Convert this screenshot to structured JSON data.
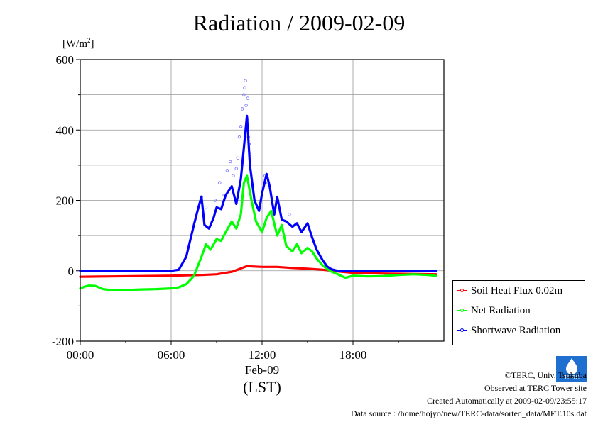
{
  "title": "Radiation / 2009-02-09",
  "unit_label": "[W/m",
  "unit_exp": "2",
  "unit_close": "]",
  "credits": {
    "line1": "©TERC, Univ. Tsukuba",
    "line2": "Observed at TERC Tower site",
    "line3": "Created Automatically at 2009-02-09/23:55:17",
    "line4": "Data source : /home/hojyo/new/TERC-data/sorted_data/MET.10s.dat"
  },
  "logo_text": "TERC",
  "chart_data": {
    "type": "line",
    "title": "Radiation / 2009-02-09",
    "ylabel": "[W/m2]",
    "xlabel": "(LST)",
    "x_date_label": "Feb-09",
    "ylim": [
      -200,
      600
    ],
    "xlim": [
      0,
      24
    ],
    "y_ticks": [
      -200,
      0,
      200,
      400,
      600
    ],
    "x_ticks": [
      {
        "hour": 0,
        "label": "00:00"
      },
      {
        "hour": 6,
        "label": "06:00"
      },
      {
        "hour": 12,
        "label": "12:00"
      },
      {
        "hour": 18,
        "label": "18:00"
      }
    ],
    "grid": true,
    "legend_position": "right",
    "series": [
      {
        "name": "Soil Heat Flux 0.02m",
        "color": "#ff0000",
        "x": [
          0,
          2,
          4,
          6,
          7,
          8,
          9,
          10,
          10.5,
          11,
          11.5,
          12,
          13,
          14,
          15,
          16,
          17,
          18,
          20,
          22,
          23.5
        ],
        "y": [
          -17,
          -16,
          -15,
          -14,
          -13,
          -12,
          -10,
          -3,
          5,
          13,
          12,
          11,
          11,
          8,
          6,
          3,
          -2,
          -6,
          -8,
          -9,
          -10
        ]
      },
      {
        "name": "Net Radiation",
        "color": "#00ff00",
        "x": [
          0,
          0.3,
          0.6,
          1,
          1.5,
          2,
          3,
          4,
          5,
          6,
          6.5,
          7,
          7.5,
          8,
          8.3,
          8.6,
          9,
          9.3,
          9.6,
          10,
          10.3,
          10.6,
          10.8,
          11,
          11.3,
          11.6,
          12,
          12.3,
          12.6,
          13,
          13.3,
          13.6,
          14,
          14.3,
          14.6,
          15,
          15.3,
          15.6,
          16,
          16.3,
          16.6,
          17,
          17.5,
          18,
          19,
          20,
          21,
          22,
          23,
          23.5
        ],
        "y": [
          -50,
          -45,
          -42,
          -43,
          -52,
          -55,
          -55,
          -53,
          -52,
          -50,
          -47,
          -38,
          -15,
          40,
          75,
          60,
          90,
          85,
          110,
          140,
          120,
          160,
          250,
          270,
          200,
          140,
          110,
          150,
          170,
          100,
          130,
          70,
          55,
          75,
          50,
          65,
          55,
          35,
          15,
          5,
          -3,
          -10,
          -20,
          -14,
          -16,
          -15,
          -12,
          -10,
          -12,
          -15
        ]
      },
      {
        "name": "Shortwave Radiation",
        "color": "#0000ff",
        "x": [
          0,
          1,
          2,
          3,
          4,
          5,
          6,
          6.5,
          7,
          7.5,
          7.8,
          8,
          8.2,
          8.5,
          8.8,
          9,
          9.3,
          9.6,
          10,
          10.3,
          10.6,
          10.8,
          11,
          11.2,
          11.5,
          11.8,
          12,
          12.3,
          12.5,
          12.8,
          13,
          13.3,
          13.6,
          14,
          14.3,
          14.6,
          15,
          15.3,
          15.6,
          16,
          16.3,
          16.6,
          17,
          18,
          19,
          20,
          21,
          22,
          23,
          23.5
        ],
        "y": [
          0,
          0,
          0,
          0,
          0,
          0,
          0,
          3,
          40,
          130,
          180,
          210,
          130,
          120,
          150,
          180,
          175,
          215,
          240,
          190,
          260,
          350,
          440,
          300,
          200,
          170,
          220,
          275,
          240,
          160,
          210,
          145,
          140,
          125,
          135,
          110,
          135,
          95,
          60,
          30,
          12,
          4,
          0,
          0,
          0,
          0,
          0,
          0,
          0,
          0
        ]
      }
    ],
    "scatter_points": {
      "name": "Shortwave Radiation",
      "color": "#6a6aff",
      "x": [
        8.0,
        8.3,
        8.9,
        9.2,
        9.5,
        9.7,
        9.9,
        10.1,
        10.3,
        10.4,
        10.5,
        10.6,
        10.7,
        10.8,
        10.85,
        10.9,
        10.95,
        11.0,
        11.05,
        11.1,
        11.15,
        11.2,
        12.2,
        12.4,
        13.8
      ],
      "y": [
        210,
        180,
        200,
        250,
        215,
        285,
        310,
        270,
        290,
        320,
        380,
        410,
        460,
        500,
        520,
        540,
        470,
        430,
        490,
        380,
        360,
        330,
        270,
        250,
        160
      ]
    }
  }
}
